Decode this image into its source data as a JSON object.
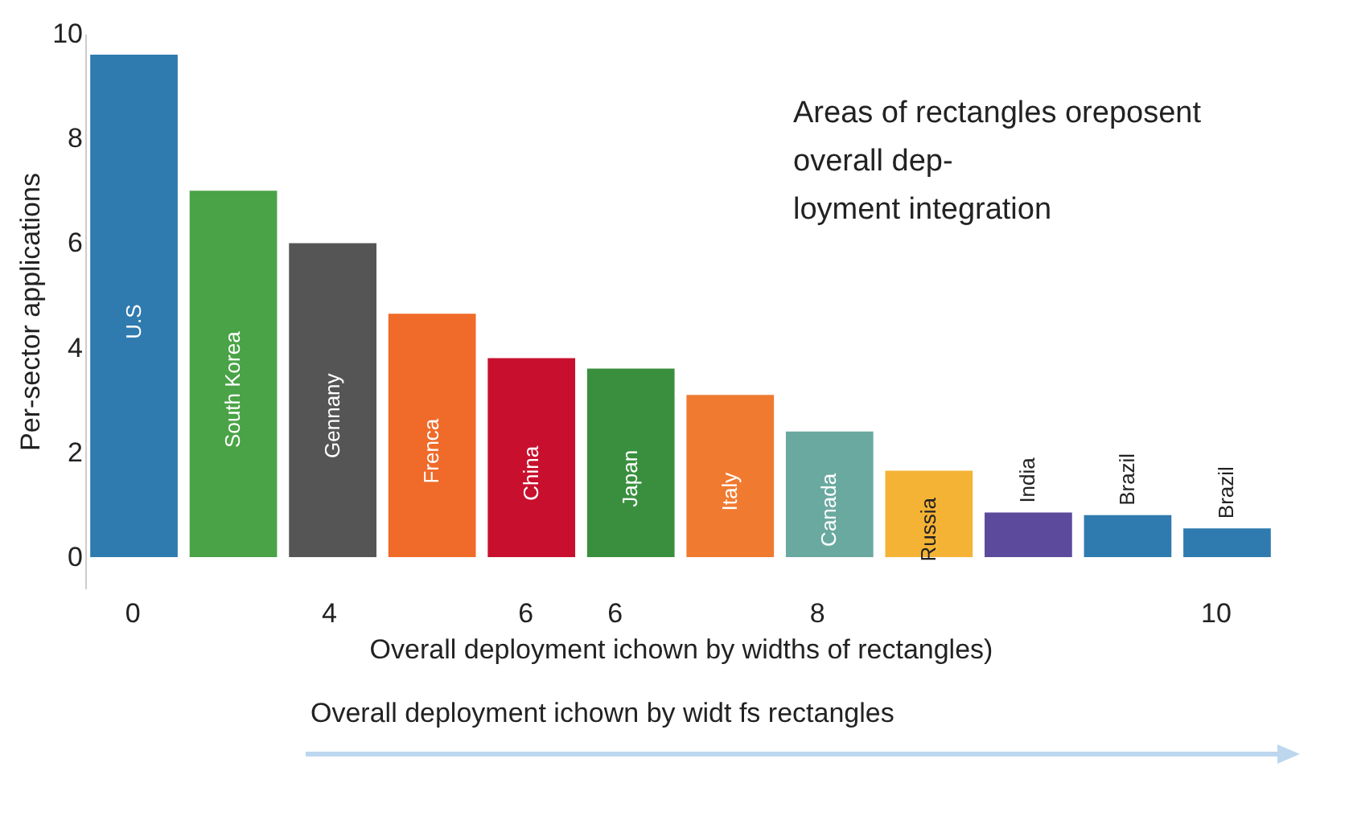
{
  "chart_data": {
    "type": "bar",
    "ylabel": "Per-sector applications",
    "xlabel": "Overall deployment ichown by widths of rectangles)",
    "categories": [
      "U.S",
      "South Korea",
      "Gennany",
      "Frenca",
      "China",
      "Japan",
      "Italy",
      "Canada",
      "Russia",
      "India",
      "Brazil",
      "Brazil"
    ],
    "values": [
      9.6,
      7.0,
      6.0,
      4.65,
      3.8,
      3.6,
      3.1,
      2.4,
      1.65,
      0.85,
      0.8,
      0.55
    ],
    "colors": [
      "#2f7bb0",
      "#4aa346",
      "#555555",
      "#f06a2a",
      "#c8102e",
      "#3a8f3f",
      "#f07a30",
      "#6aa9a0",
      "#f5b335",
      "#5c4a9c",
      "#2f7bb0",
      "#2f7bb0"
    ],
    "ylim": [
      -0.6,
      10
    ],
    "yticks": [
      0,
      2,
      4,
      6,
      8,
      10
    ],
    "grid": false,
    "legend": false,
    "annotations": [
      "Areas of rectangles oreposent overall dep-loyment integration",
      "Overall deployment ichown by widt fs rectangles",
      "0",
      "4",
      "6",
      "6",
      "8",
      "10"
    ]
  }
}
